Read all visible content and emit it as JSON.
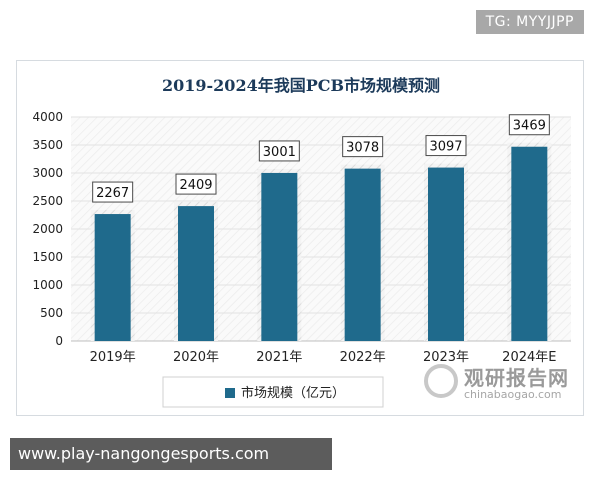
{
  "tag": "TG: MYYJJPP",
  "footer_url": "www.play-nangongesports.com",
  "watermark": {
    "title": "观研报告网",
    "subtitle": "chinabaogao.com"
  },
  "chart_data": {
    "type": "bar",
    "title": "2019-2024年我国PCB市场规模预测",
    "categories": [
      "2019年",
      "2020年",
      "2021年",
      "2022年",
      "2023年",
      "2024年E"
    ],
    "series": [
      {
        "name": "市场规模（亿元）",
        "values": [
          2267,
          2409,
          3001,
          3078,
          3097,
          3469
        ]
      }
    ],
    "ylim": [
      0,
      4000
    ],
    "yticks": [
      0,
      500,
      1000,
      1500,
      2000,
      2500,
      3000,
      3500,
      4000
    ],
    "grid": true,
    "legend": "bottom",
    "bar_color": "#1f6a8c"
  }
}
